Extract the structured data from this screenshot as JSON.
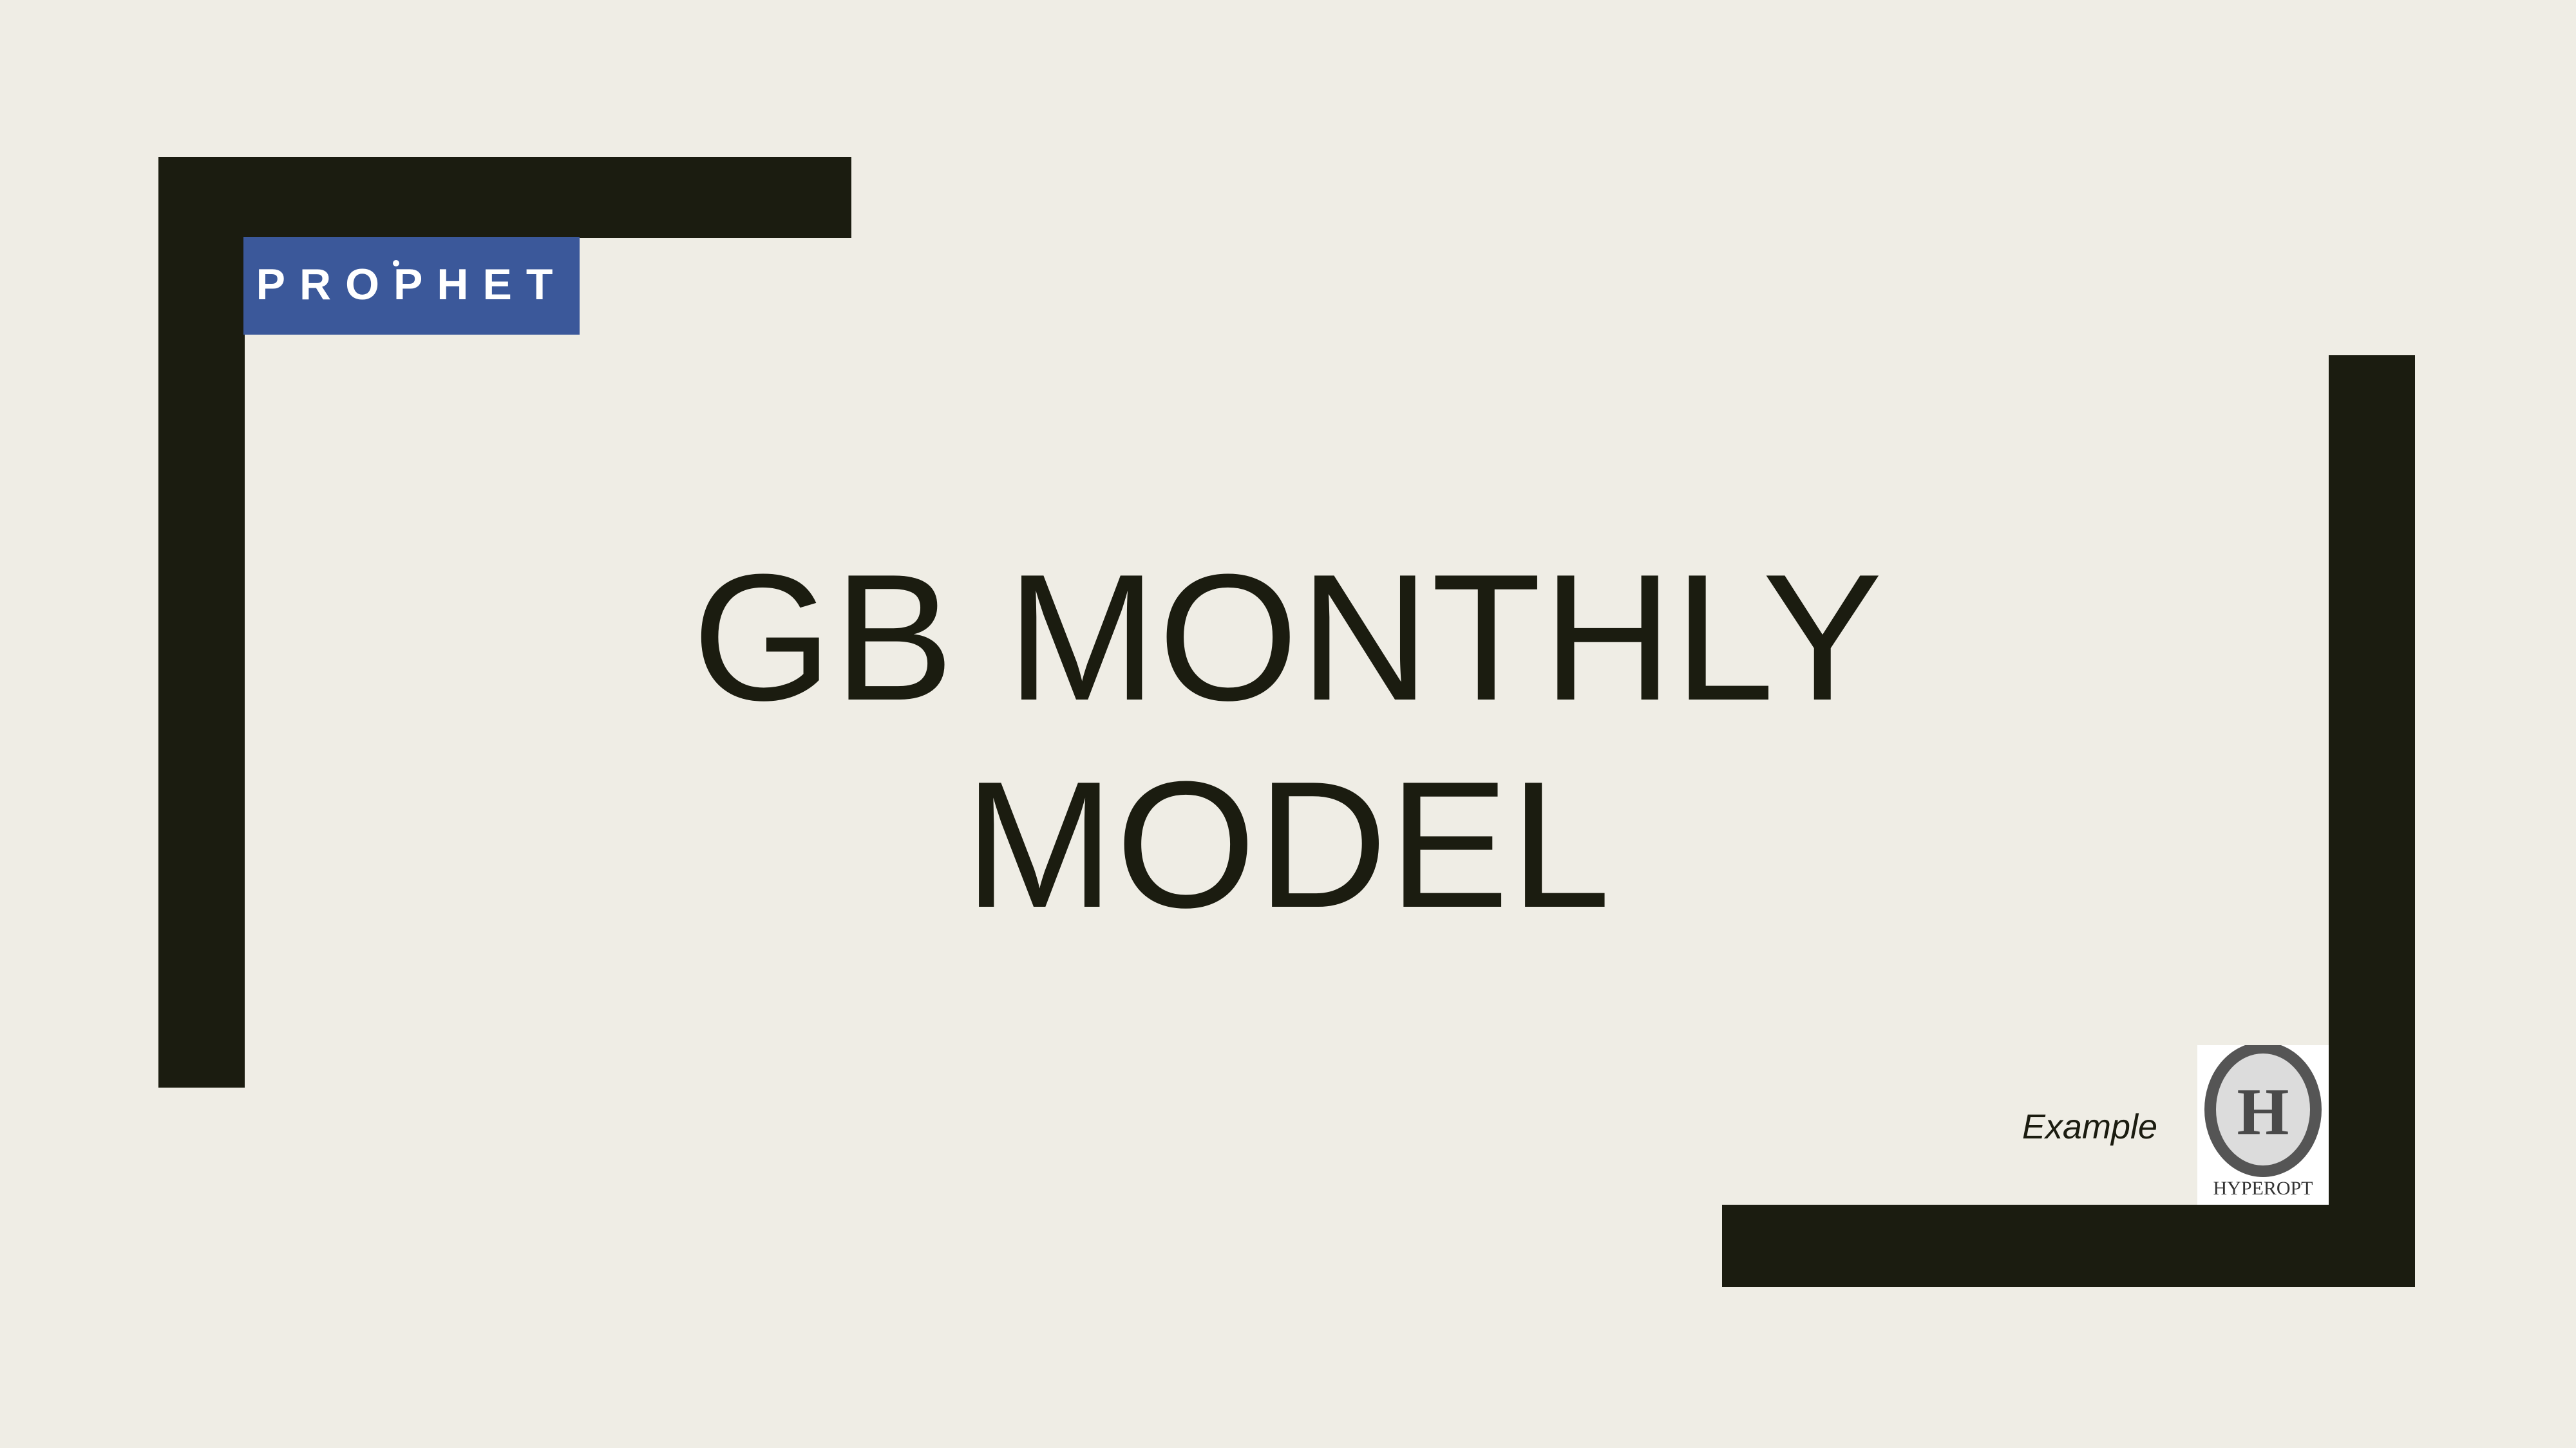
{
  "slide": {
    "title_line1": "GB MONTHLY",
    "title_line2": "MODEL",
    "caption": "Example"
  },
  "logos": {
    "prophet": {
      "text": "PROPHET",
      "background_color": "#3b589a",
      "text_color": "#ffffff"
    },
    "hyperopt": {
      "letter": "H",
      "text": "HYPEROPT",
      "ring_color": "#555555"
    }
  },
  "colors": {
    "background": "#efede5",
    "accent": "#1b1c10"
  }
}
